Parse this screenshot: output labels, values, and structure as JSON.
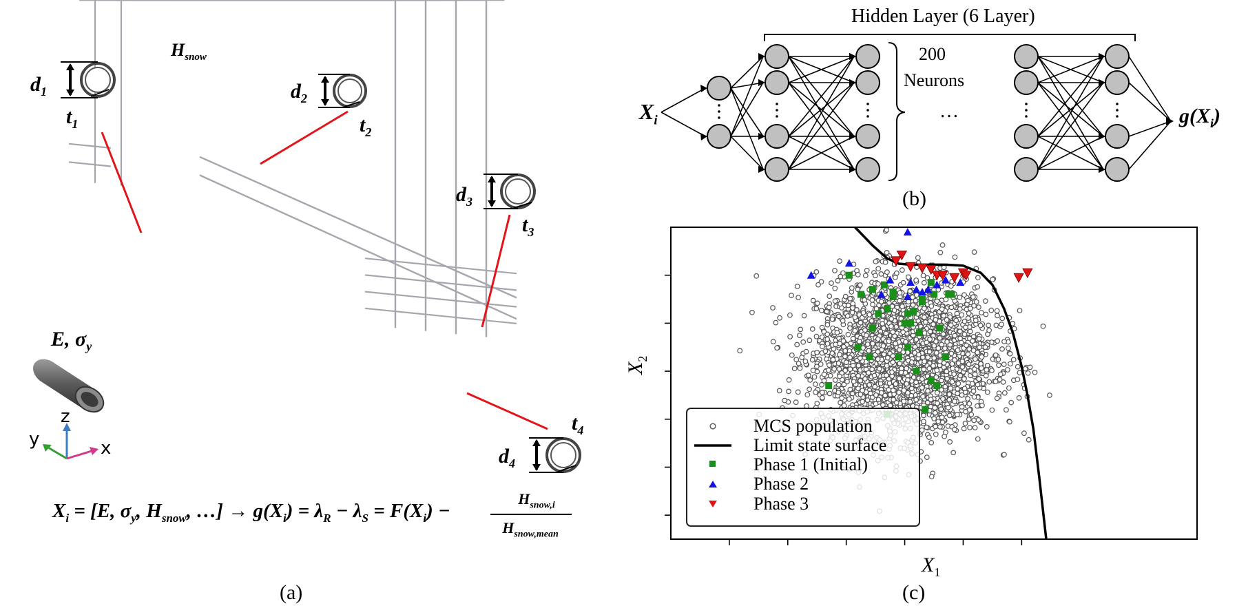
{
  "panel_a": {
    "caption": "(a)",
    "labels": {
      "h_snow": "H",
      "h_snow_sub": "snow",
      "d1": "d",
      "d1_sub": "1",
      "t1": "t",
      "t1_sub": "1",
      "d2": "d",
      "d2_sub": "2",
      "t2": "t",
      "t2_sub": "2",
      "d3": "d",
      "d3_sub": "3",
      "t3": "t",
      "t3_sub": "3",
      "d4": "d",
      "d4_sub": "4",
      "t4": "t",
      "t4_sub": "4",
      "material": "E, σ",
      "material_sub": "y"
    },
    "axes": {
      "z": "z",
      "y": "y",
      "x": "x"
    },
    "equation": {
      "lhs": "X",
      "lhs_sub": "i",
      "vector": " = [E, σ",
      "vector_sub1": "y",
      "vector_mid": ", H",
      "vector_sub2": "snow",
      "vector_end": ", …] → g(X",
      "g_sub": "i",
      "g_end": ") = λ",
      "lam_r_sub": "R",
      "minus": " − λ",
      "lam_s_sub": "S",
      "f_part": " = F(X",
      "f_sub": "i",
      "f_end": ") −",
      "frac_num": "H",
      "frac_num_sub": "snow,i",
      "frac_den": "H",
      "frac_den_sub": "snow,mean"
    },
    "colors": {
      "frame": "#a6a6ae",
      "load": "#1f1fb4",
      "callout": "#e0161a"
    }
  },
  "panel_b": {
    "caption": "(b)",
    "hidden_label": "Hidden Layer (6 Layer)",
    "neurons_count": "200",
    "neurons_word": "Neurons",
    "ellipsis": "…",
    "input_label": "X",
    "input_sub": "i",
    "output_label": "g(X",
    "output_sub": "i",
    "output_end": ")",
    "colors": {
      "neuron_fill": "#c0c0c0"
    }
  },
  "chart_data": {
    "type": "scatter",
    "title": "",
    "xlabel": "X",
    "xlabel_sub": "1",
    "ylabel": "X",
    "ylabel_sub": "2",
    "caption": "(c)",
    "xlim": [
      -4,
      5
    ],
    "ylim": [
      -3.5,
      3
    ],
    "xticks": [
      -3,
      -2,
      -1,
      0,
      1,
      2
    ],
    "yticks": [
      -3,
      -2,
      -1,
      0,
      1,
      2
    ],
    "tick_labels_visible": false,
    "mcs_population": {
      "count": 3000,
      "center": [
        0,
        0.3
      ],
      "sd": [
        0.75,
        0.8
      ]
    },
    "limit_state_surface": {
      "x": [
        -0.85,
        -0.55,
        -0.3,
        -0.1,
        0.1,
        0.4,
        0.7,
        1.0,
        1.3,
        1.5,
        1.7,
        1.85,
        2.0,
        2.1,
        2.2,
        2.3,
        2.42
      ],
      "y": [
        3.0,
        2.62,
        2.35,
        2.24,
        2.22,
        2.22,
        2.22,
        2.2,
        2.05,
        1.8,
        1.3,
        0.8,
        0.1,
        -0.5,
        -1.2,
        -2.2,
        -3.5
      ]
    },
    "series": [
      {
        "name": "Phase 1 (Initial)",
        "marker": "square",
        "color": "#1a8f1a",
        "x": [
          -0.95,
          -0.75,
          -0.55,
          -0.35,
          -0.3,
          -0.1,
          0.05,
          0.2,
          0.25,
          0.3,
          0.05,
          0.45,
          0.55,
          -0.45,
          -0.6,
          -0.2,
          0.3,
          0.5,
          0.75,
          0.8,
          -0.2,
          0.0,
          -0.8,
          -1.3,
          -0.3,
          0.6,
          0.35,
          0.1,
          -0.55,
          0.7,
          0.45,
          0.15
        ],
        "y": [
          2.0,
          1.6,
          0.9,
          1.8,
          1.3,
          0.3,
          0.5,
          0.0,
          0.8,
          1.5,
          1.2,
          -0.2,
          -0.3,
          1.2,
          0.3,
          1.55,
          1.45,
          1.6,
          1.6,
          1.6,
          1.65,
          1.0,
          0.5,
          -0.3,
          -0.9,
          0.9,
          -0.8,
          1.0,
          1.7,
          0.3,
          1.85,
          1.25
        ]
      },
      {
        "name": "Phase 2",
        "marker": "triangle-up",
        "color": "#1414e0",
        "x": [
          0.05,
          -1.6,
          -0.95,
          -0.25,
          0.1,
          0.2,
          0.55,
          0.95,
          0.7,
          -0.4,
          0.3,
          0.4,
          0.05
        ],
        "y": [
          2.9,
          2.0,
          2.25,
          1.9,
          1.85,
          1.7,
          1.8,
          1.85,
          1.9,
          1.6,
          1.65,
          1.7,
          1.55
        ]
      },
      {
        "name": "Phase 3",
        "marker": "triangle-down",
        "color": "#e01414",
        "x": [
          -0.05,
          -0.15,
          0.1,
          0.3,
          0.45,
          0.55,
          0.65,
          0.85,
          1.0,
          1.05,
          1.95,
          2.1
        ],
        "y": [
          2.42,
          2.3,
          2.18,
          2.15,
          2.12,
          2.0,
          2.0,
          1.95,
          2.05,
          2.0,
          1.95,
          2.05
        ]
      }
    ],
    "legend": {
      "position": "lower-left",
      "entries": [
        "MCS population",
        "Limit state surface",
        "Phase 1 (Initial)",
        "Phase 2",
        "Phase 3"
      ]
    }
  }
}
